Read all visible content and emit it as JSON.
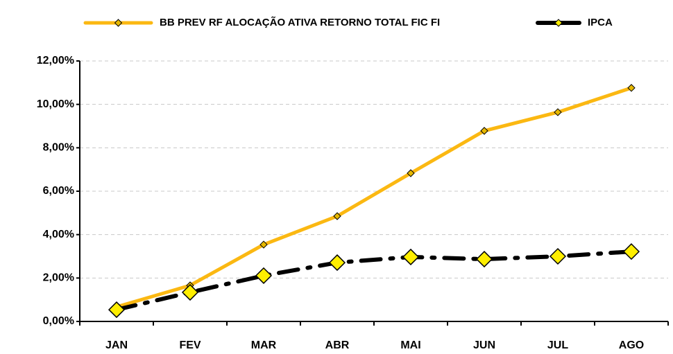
{
  "chart_data": {
    "type": "line",
    "categories": [
      "JAN",
      "FEV",
      "MAR",
      "ABR",
      "MAI",
      "JUN",
      "JUL",
      "AGO"
    ],
    "series": [
      {
        "name": "BB PREV RF ALOCAÇÃO ATIVA RETORNO TOTAL FIC FI",
        "color": "#FBB812",
        "marker_color": "#E6B800",
        "line_style": "solid",
        "values": [
          0.67,
          1.66,
          3.54,
          4.85,
          6.83,
          8.78,
          9.64,
          10.76
        ]
      },
      {
        "name": "IPCA",
        "color": "#000000",
        "marker_color": "#FFEE00",
        "line_style": "dashdot",
        "values": [
          0.54,
          1.34,
          2.11,
          2.71,
          2.97,
          2.87,
          3.0,
          3.22
        ]
      }
    ],
    "ylim": [
      0,
      12
    ],
    "yticks": [
      {
        "value": 0,
        "label": "0,00%"
      },
      {
        "value": 2,
        "label": "2,00%"
      },
      {
        "value": 4,
        "label": "4,00%"
      },
      {
        "value": 6,
        "label": "6,00%"
      },
      {
        "value": 8,
        "label": "8,00%"
      },
      {
        "value": 10,
        "label": "10,00%"
      },
      {
        "value": 12,
        "label": "12,00%"
      }
    ],
    "grid": true,
    "legend": "top"
  }
}
